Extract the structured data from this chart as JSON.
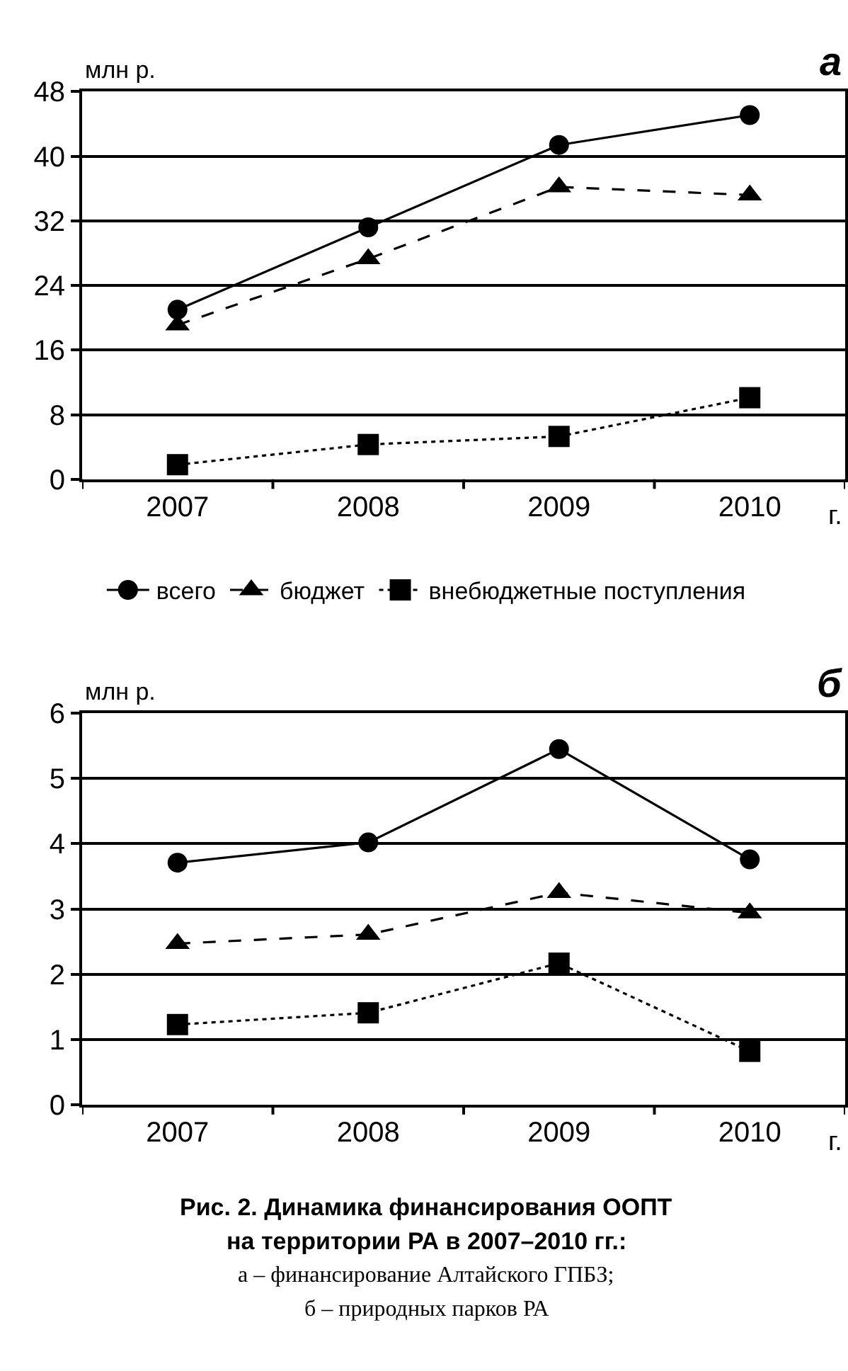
{
  "chart_data": [
    {
      "type": "line",
      "title": "а",
      "ylabel": "млн р.",
      "xlabel": "г.",
      "categories": [
        "2007",
        "2008",
        "2009",
        "2010"
      ],
      "ylim": [
        0,
        48
      ],
      "yticks": [
        0,
        8,
        16,
        24,
        32,
        40,
        48
      ],
      "grid": "y",
      "legend": "bottom",
      "series": [
        {
          "name": "всего",
          "color": "#000000",
          "marker": "circle",
          "line_style": "solid",
          "values": [
            21.0,
            31.2,
            41.4,
            45.1
          ]
        },
        {
          "name": "бюджет",
          "color": "#000000",
          "marker": "triangle",
          "line_style": "dashed",
          "values": [
            19.1,
            27.3,
            36.2,
            35.2
          ]
        },
        {
          "name": "внебюджетные поступления",
          "color": "#000000",
          "marker": "square",
          "line_style": "dotted",
          "values": [
            1.8,
            4.3,
            5.3,
            10.1
          ]
        }
      ]
    },
    {
      "type": "line",
      "title": "б",
      "ylabel": "млн р.",
      "xlabel": "г.",
      "categories": [
        "2007",
        "2008",
        "2009",
        "2010"
      ],
      "ylim": [
        0,
        6
      ],
      "yticks": [
        0,
        1,
        2,
        3,
        4,
        5,
        6
      ],
      "grid": "y",
      "series": [
        {
          "color": "#000000",
          "marker": "circle",
          "line_style": "solid",
          "values": [
            3.71,
            4.02,
            5.45,
            3.76
          ]
        },
        {
          "color": "#000000",
          "marker": "triangle",
          "line_style": "dashed",
          "values": [
            2.47,
            2.61,
            3.25,
            2.94
          ]
        },
        {
          "color": "#000000",
          "marker": "square",
          "line_style": "dotted",
          "values": [
            1.23,
            1.41,
            2.17,
            0.82
          ]
        }
      ],
      "annotations": [
        "Рис. 2. Динамика финансирования ООПТ",
        "на территории РА в 2007–2010 гг.:",
        "а – финансирование Алтайского ГПБЗ;",
        "б – природных парков РА"
      ]
    }
  ]
}
